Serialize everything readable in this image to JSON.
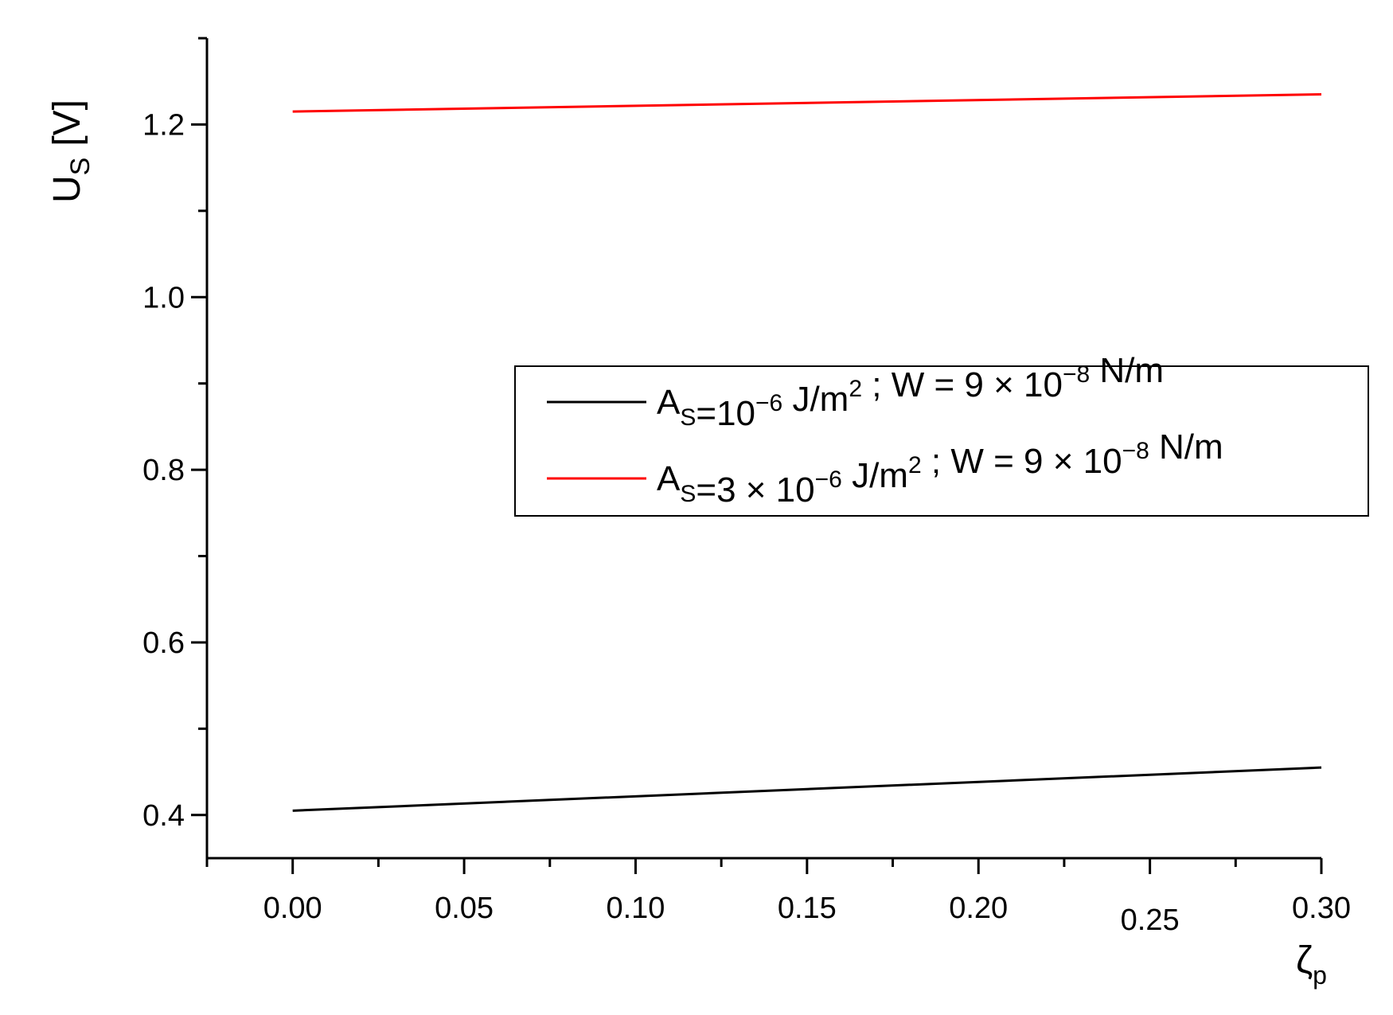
{
  "chart_data": {
    "type": "line",
    "xlabel_symbol": "ζ",
    "xlabel_subscript": "p",
    "ylabel_main": "U",
    "ylabel_subscript": "S",
    "ylabel_unit": "[V]",
    "xlim": [
      -0.025,
      0.3
    ],
    "ylim": [
      0.35,
      1.3
    ],
    "x_ticks": [
      "0.00",
      "0.05",
      "0.10",
      "0.15",
      "0.20",
      "0.25",
      "0.30"
    ],
    "x_tick_values": [
      0.0,
      0.05,
      0.1,
      0.15,
      0.2,
      0.25,
      0.3
    ],
    "y_ticks": [
      "0.4",
      "0.6",
      "0.8",
      "1.0",
      "1.2"
    ],
    "y_tick_values": [
      0.4,
      0.6,
      0.8,
      1.0,
      1.2
    ],
    "legend_position": "center-right",
    "grid": false,
    "series": [
      {
        "name": "A_S=10^-6 J/m^2 ; W = 9 × 10^-8 N/m",
        "color": "#000000",
        "x": [
          0.0,
          0.3
        ],
        "y": [
          0.405,
          0.455
        ],
        "legend_parts": [
          {
            "t": "A"
          },
          {
            "t": "S",
            "sub": true
          },
          {
            "t": "=10"
          },
          {
            "t": "−6",
            "sup": true
          },
          {
            "t": " J/m"
          },
          {
            "t": "2",
            "sup": true
          },
          {
            "t": " ; W = 9 × 10"
          },
          {
            "t": "−8",
            "sup": true
          },
          {
            "t": " N/m"
          }
        ]
      },
      {
        "name": "A_S=3 × 10^-6 J/m^2 ; W = 9 × 10^-8 N/m",
        "color": "#ff0000",
        "x": [
          0.0,
          0.3
        ],
        "y": [
          1.215,
          1.235
        ],
        "legend_parts": [
          {
            "t": "A"
          },
          {
            "t": "S",
            "sub": true
          },
          {
            "t": "=3 × 10"
          },
          {
            "t": "−6",
            "sup": true
          },
          {
            "t": " J/m"
          },
          {
            "t": "2",
            "sup": true
          },
          {
            "t": " ; W = 9 × 10"
          },
          {
            "t": "−8",
            "sup": true
          },
          {
            "t": " N/m"
          }
        ]
      }
    ]
  }
}
